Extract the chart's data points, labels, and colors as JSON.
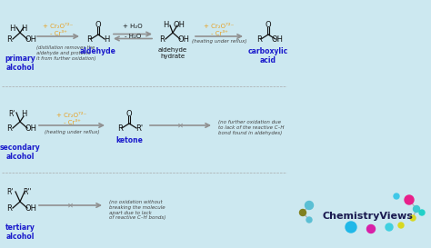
{
  "bg_color": "#cce8f0",
  "orange": "#e8a020",
  "blue_label": "#1a1acc",
  "gray_arrow": "#909090",
  "black": "#111111",
  "small_text": "#444444",
  "primary_label": "primary\nalcohol",
  "secondary_label": "secondary\nalcohol",
  "tertiary_label": "tertiary\nalcohol",
  "aldehyde_label": "aldehyde",
  "ketone_label": "ketone",
  "aldehyde_hydrate_label": "aldehyde\nhydrate",
  "carboxylic_acid_label": "carboxylic\nacid",
  "cr2o7_text": "+ Cr₂O⁷²⁻",
  "cr3_text": "- Cr³⁺",
  "h2o_plus": "+ H₂O",
  "h2o_minus": "- H₂O",
  "heating_reflux": "(heating under reflux)",
  "distillation_note": "(distillation removes the\naldehyde and protects\nit from further oxidation)",
  "no_further_ox": "(no further oxidation due\nto lack of the reactive C–H\nbond found in aldehydes)",
  "no_ox_tertiary": "(no oxidation without\nbreaking the molecule\napart due to lack\nof reactive C–H bonds)"
}
